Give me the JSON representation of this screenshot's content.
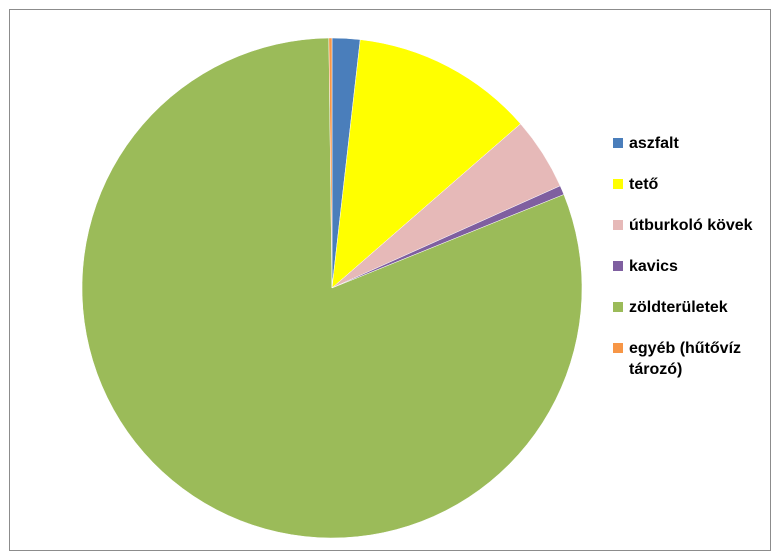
{
  "chart_data": {
    "type": "pie",
    "title": "",
    "legend_position": "right",
    "slices": [
      {
        "label": "aszfalt",
        "value": 1.8,
        "color": "#4a7ebb"
      },
      {
        "label": "tető",
        "value": 11.8,
        "color": "#ffff00"
      },
      {
        "label": "útburkoló kövek",
        "value": 4.7,
        "color": "#e6b9b8"
      },
      {
        "label": "kavics",
        "value": 0.6,
        "color": "#7f5fa0"
      },
      {
        "label": "zöldterületek",
        "value": 80.9,
        "color": "#9bbb59"
      },
      {
        "label": "egyéb (hűtővíz\ntározó)",
        "value": 0.2,
        "color": "#f79646"
      }
    ]
  }
}
